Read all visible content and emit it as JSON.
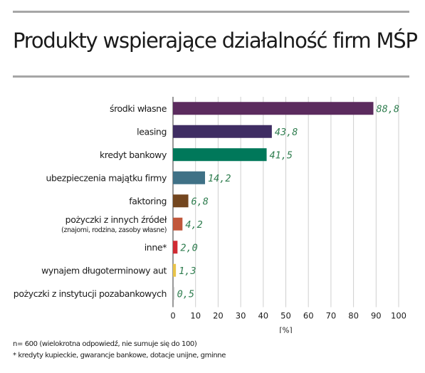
{
  "title": "Produkty wspierające działalność firm MŚP",
  "chart_data": {
    "type": "bar",
    "orientation": "horizontal",
    "categories": [
      "środki własne",
      "leasing",
      "kredyt bankowy",
      "ubezpieczenia majątku firmy",
      "faktoring",
      "pożyczki z innych źródeł",
      "inne*",
      "wynajem długoterminowy aut",
      "pożyczki z instytucji pozabankowych"
    ],
    "category_notes": [
      "",
      "",
      "",
      "",
      "",
      "(znajomi, rodzina, zasoby własne)",
      "",
      "",
      ""
    ],
    "values": [
      88.8,
      43.8,
      41.5,
      14.2,
      6.8,
      4.2,
      2.0,
      1.3,
      0.5
    ],
    "value_labels": [
      "88,8",
      "43,8",
      "41,5",
      "14,2",
      "6,8",
      "4,2",
      "2,0",
      "1,3",
      "0,5"
    ],
    "colors": [
      "#5b2b5e",
      "#3f2d63",
      "#00785a",
      "#3f7186",
      "#73461f",
      "#c1573b",
      "#d02b33",
      "#e9c44a",
      "#a7a7a7"
    ],
    "xlim": [
      0,
      100
    ],
    "xticks": [
      0,
      10,
      20,
      30,
      40,
      50,
      60,
      70,
      80,
      90,
      100
    ],
    "xlabel": "[%]",
    "value_label_color": "#2f7d4f",
    "grid": true
  },
  "footnotes": [
    "n= 600 (wielokrotna odpowiedź, nie sumuje się do 100)",
    "* kredyty kupieckie, gwarancje bankowe, dotacje unijne, gminne"
  ]
}
